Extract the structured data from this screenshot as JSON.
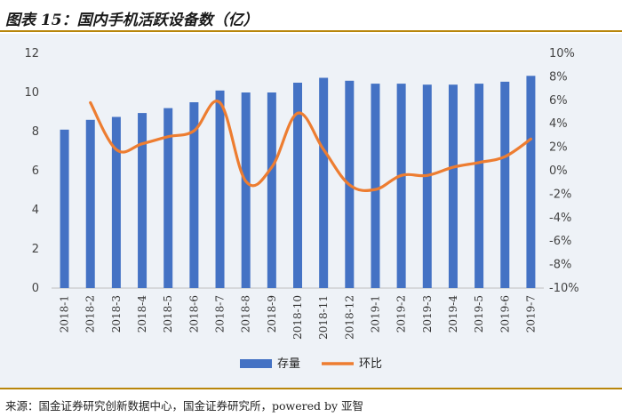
{
  "header": {
    "title": "图表 15：国内手机活跃设备数（亿）"
  },
  "footer": {
    "source": "来源：国金证券研究创新数据中心，国金证券研究所，powered by 亚智"
  },
  "colors": {
    "bar": "#4472c4",
    "line": "#ed7d31",
    "axis": "#bfbfbf",
    "background": "#eef2f7"
  },
  "chart_data": {
    "type": "bar",
    "title": "",
    "categories": [
      "2018-1",
      "2018-2",
      "2018-3",
      "2018-4",
      "2018-5",
      "2018-6",
      "2018-7",
      "2018-8",
      "2018-9",
      "2018-10",
      "2018-11",
      "2018-12",
      "2019-1",
      "2019-2",
      "2019-3",
      "2019-4",
      "2019-5",
      "2019-6",
      "2019-7"
    ],
    "series": [
      {
        "name": "存量",
        "type": "bar",
        "axis": "left",
        "values": [
          8.1,
          8.6,
          8.75,
          8.95,
          9.2,
          9.5,
          10.1,
          10.0,
          10.0,
          10.5,
          10.75,
          10.6,
          10.45,
          10.45,
          10.4,
          10.4,
          10.45,
          10.55,
          10.85
        ]
      },
      {
        "name": "环比",
        "type": "line",
        "axis": "right",
        "values": [
          null,
          5.8,
          1.8,
          2.3,
          2.9,
          3.4,
          5.8,
          -0.9,
          0.3,
          4.9,
          1.8,
          -1.2,
          -1.6,
          -0.4,
          -0.4,
          0.3,
          0.7,
          1.2,
          2.7
        ]
      }
    ],
    "y_left": {
      "min": 0,
      "max": 12,
      "step": 2,
      "ticks": [
        "0",
        "2",
        "4",
        "6",
        "8",
        "10",
        "12"
      ]
    },
    "y_right": {
      "min": -10,
      "max": 10,
      "step": 2,
      "ticks": [
        "-10%",
        "-8%",
        "-6%",
        "-4%",
        "-2%",
        "0%",
        "2%",
        "4%",
        "6%",
        "8%",
        "10%"
      ]
    },
    "legend": {
      "position": "bottom",
      "items": [
        "存量",
        "环比"
      ]
    }
  }
}
